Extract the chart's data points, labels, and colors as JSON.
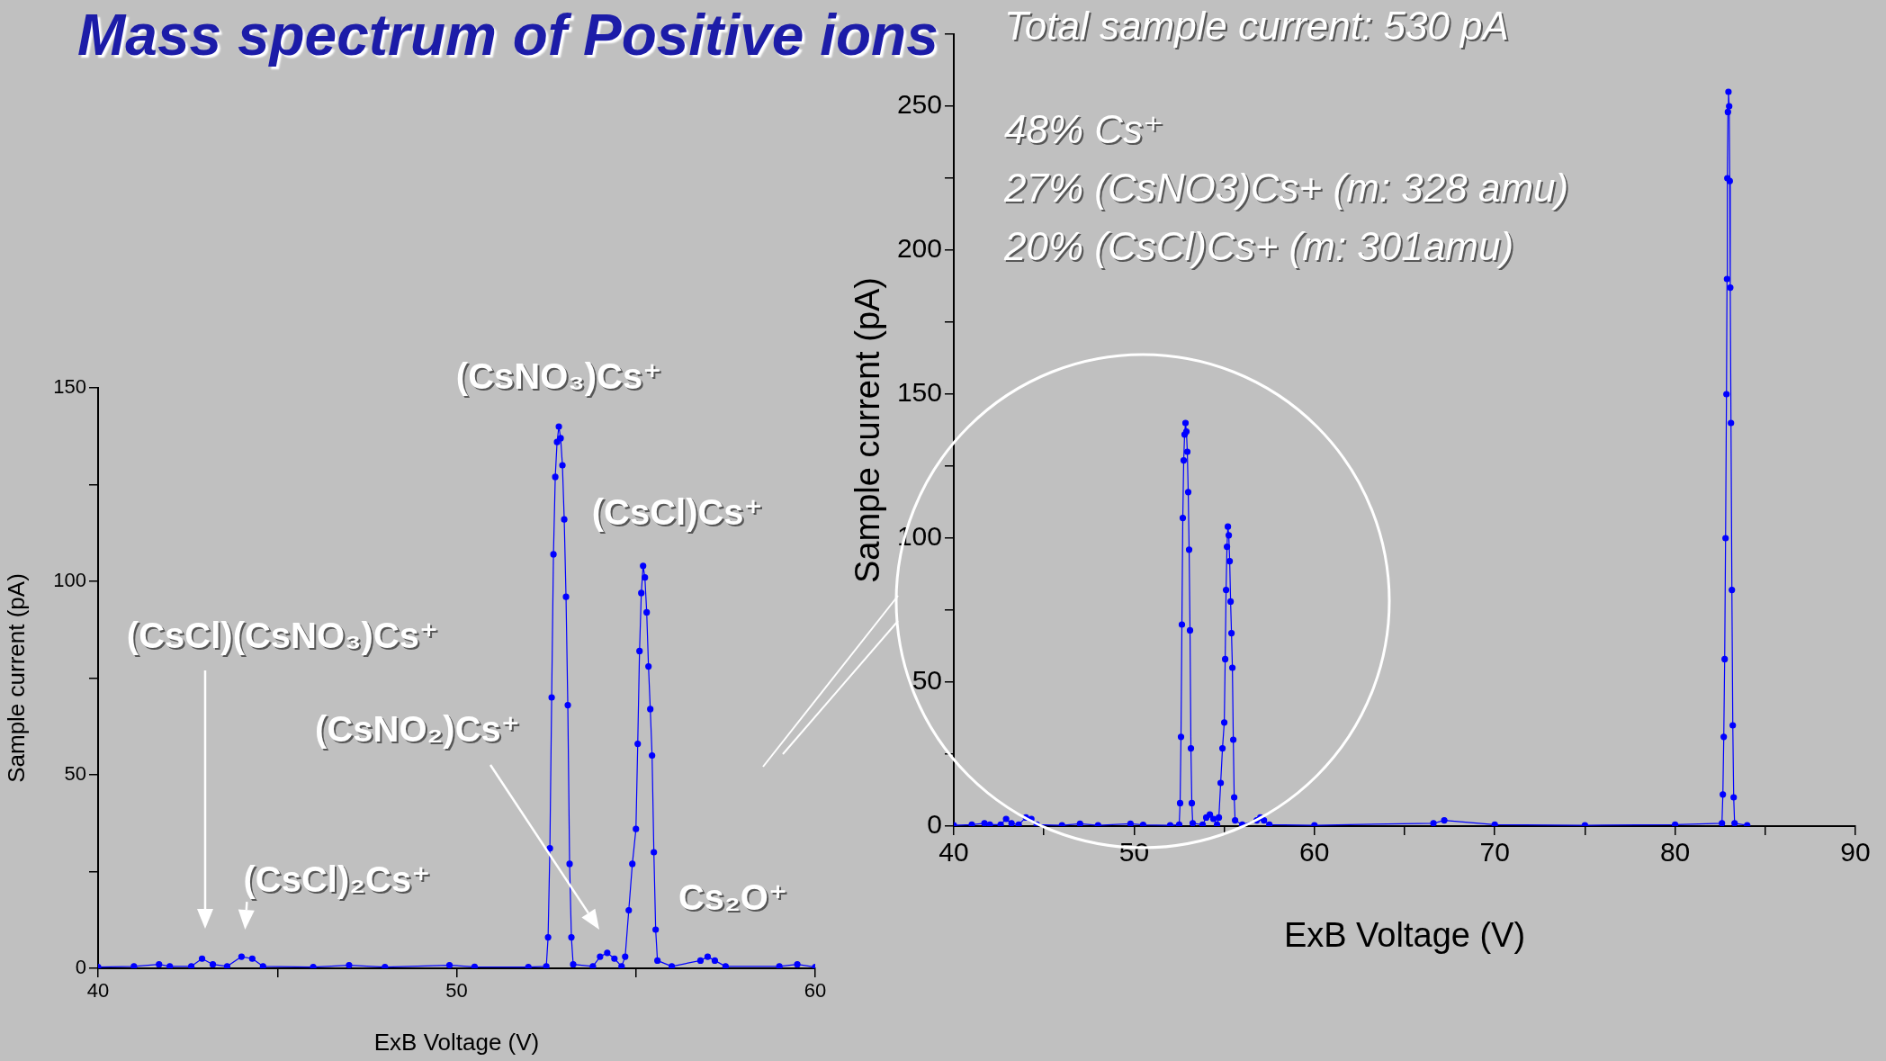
{
  "chart_data": [
    {
      "type": "line",
      "title": "Mass spectrum of Positive ions",
      "xlabel": "ExB Voltage (V)",
      "ylabel": "Sample current (pA)",
      "xlim": [
        40,
        60
      ],
      "ylim": [
        0,
        150
      ],
      "xticks": [
        40,
        {
          "value": 45,
          "label": null
        },
        50,
        {
          "value": 55,
          "label": null
        },
        60
      ],
      "yticks": [
        0,
        {
          "value": 25,
          "label": null
        },
        50,
        {
          "value": 75,
          "label": null
        },
        100,
        {
          "value": 125,
          "label": null
        },
        150
      ],
      "grid": false,
      "legend": false,
      "marker": "circle",
      "line_style": "solid",
      "annotations": [
        {
          "text": "(CsNO₃)Cs⁺",
          "x": 52.85,
          "y": 140
        },
        {
          "text": "(CsCl)Cs⁺",
          "x": 55.2,
          "y": 104
        },
        "(CsCl)(CsNO₃)Cs⁺",
        {
          "text": "(CsCl)₂Cs⁺",
          "x": 44.1,
          "y": 3
        },
        "(CsNO₂)Cs⁺",
        {
          "text": "Cs₂O⁺",
          "x": 57,
          "y": 3
        }
      ],
      "series": [
        {
          "color": "#0000ff",
          "x": [
            40,
            41,
            41.7,
            42,
            42.6,
            42.9,
            43.2,
            43.6,
            44,
            44.3,
            44.6,
            46,
            47,
            48,
            49.8,
            50.5,
            52,
            52.5,
            52.55,
            52.6,
            52.65,
            52.7,
            52.75,
            52.8,
            52.85,
            52.9,
            52.95,
            53,
            53.05,
            53.1,
            53.15,
            53.2,
            53.25,
            53.8,
            54,
            54.2,
            54.4,
            54.6,
            54.7,
            54.8,
            54.9,
            55,
            55.05,
            55.1,
            55.15,
            55.2,
            55.25,
            55.3,
            55.35,
            55.4,
            55.45,
            55.5,
            55.55,
            55.6,
            56,
            56.8,
            57,
            57.2,
            57.5,
            59,
            59.5,
            60
          ],
          "values": [
            0.3,
            0.5,
            1,
            0.5,
            0.5,
            2.5,
            1,
            0.5,
            3,
            2.5,
            0.5,
            0.3,
            0.8,
            0.3,
            0.8,
            0.4,
            0.3,
            0.5,
            8,
            31,
            70,
            107,
            127,
            136,
            140,
            137,
            130,
            116,
            96,
            68,
            27,
            8,
            1,
            0.5,
            3,
            4,
            2.5,
            0.5,
            3,
            15,
            27,
            36,
            58,
            82,
            97,
            104,
            101,
            92,
            78,
            67,
            55,
            30,
            10,
            2,
            0.5,
            2,
            3,
            2,
            0.5,
            0.5,
            1,
            0.3
          ]
        }
      ]
    },
    {
      "type": "line",
      "xlabel": "ExB Voltage (V)",
      "ylabel": "Sample current (pA)",
      "xlim": [
        40,
        90
      ],
      "ylim": [
        0,
        275
      ],
      "xticks": [
        40,
        {
          "value": 45,
          "label": null
        },
        50,
        {
          "value": 55,
          "label": null
        },
        60,
        {
          "value": 65,
          "label": null
        },
        70,
        {
          "value": 75,
          "label": null
        },
        80,
        {
          "value": 85,
          "label": null
        },
        90
      ],
      "yticks": [
        0,
        {
          "value": 25,
          "label": null
        },
        50,
        {
          "value": 75,
          "label": null
        },
        100,
        {
          "value": 125,
          "label": null
        },
        150,
        {
          "value": 175,
          "label": null
        },
        200,
        {
          "value": 225,
          "label": null
        },
        250,
        {
          "value": 275,
          "label": null
        }
      ],
      "grid": false,
      "legend": false,
      "marker": "circle",
      "line_style": "solid",
      "annotations": [
        "Total sample current: 530 pA",
        "48% Cs⁺",
        "27% (CsNO3)Cs+ (m: 328 amu)",
        "20% (CsCl)Cs+ (m: 301amu)"
      ],
      "series": [
        {
          "color": "#0000ff",
          "x": [
            40,
            41,
            41.7,
            42,
            42.6,
            42.9,
            43.2,
            43.6,
            44,
            44.3,
            44.6,
            46,
            47,
            48,
            49.8,
            50.5,
            52,
            52.5,
            52.55,
            52.6,
            52.65,
            52.7,
            52.75,
            52.8,
            52.85,
            52.9,
            52.95,
            53,
            53.05,
            53.1,
            53.15,
            53.2,
            53.25,
            53.8,
            54,
            54.2,
            54.4,
            54.6,
            54.7,
            54.8,
            54.9,
            55,
            55.05,
            55.1,
            55.15,
            55.2,
            55.25,
            55.3,
            55.35,
            55.4,
            55.45,
            55.5,
            55.55,
            55.6,
            56,
            56.8,
            57,
            57.2,
            57.5,
            60,
            66.6,
            67.2,
            70,
            75,
            80,
            82.6,
            82.65,
            82.7,
            82.75,
            82.8,
            82.85,
            82.88,
            82.9,
            82.93,
            82.96,
            83,
            83.03,
            83.06,
            83.1,
            83.15,
            83.2,
            83.25,
            83.3,
            84
          ],
          "values": [
            0.3,
            0.5,
            1,
            0.5,
            0.5,
            2.5,
            1,
            0.5,
            3,
            2.5,
            0.5,
            0.3,
            0.8,
            0.3,
            0.8,
            0.4,
            0.3,
            0.5,
            8,
            31,
            70,
            107,
            127,
            136,
            140,
            137,
            130,
            116,
            96,
            68,
            27,
            8,
            1,
            0.5,
            3,
            4,
            2.5,
            0.5,
            3,
            15,
            27,
            36,
            58,
            82,
            97,
            104,
            101,
            92,
            78,
            67,
            55,
            30,
            10,
            2,
            0.5,
            2,
            3,
            2,
            0.5,
            0.3,
            1,
            2,
            0.5,
            0.3,
            0.5,
            1,
            11,
            31,
            58,
            100,
            150,
            190,
            225,
            248,
            255,
            250,
            224,
            187,
            140,
            82,
            35,
            10,
            1,
            0.3
          ]
        }
      ]
    }
  ]
}
